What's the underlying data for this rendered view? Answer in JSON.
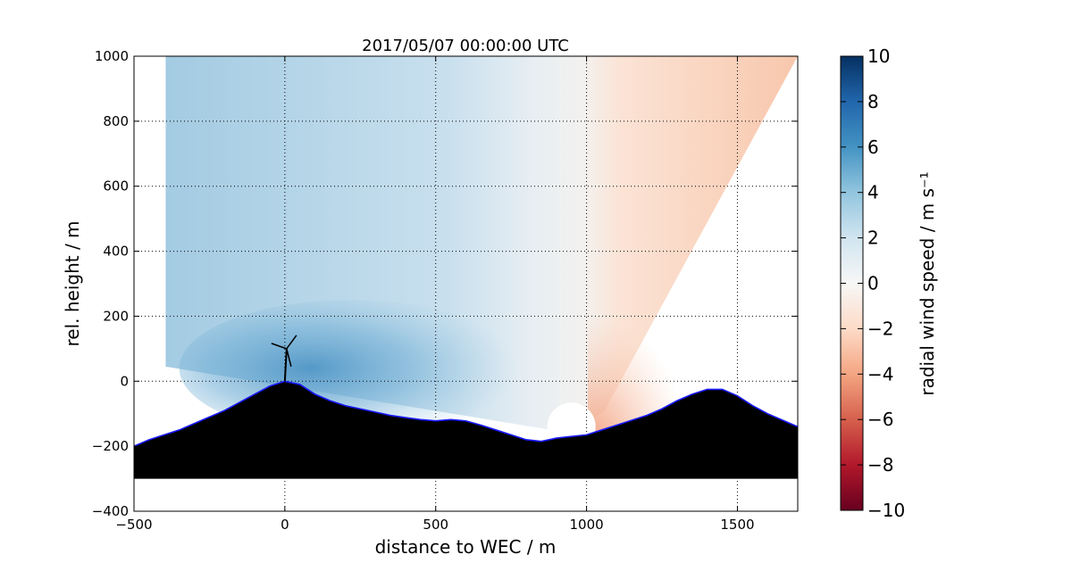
{
  "chart_data": {
    "type": "heatmap",
    "title": "2017/05/07 00:00:00 UTC",
    "xlabel": "distance to WEC / m",
    "ylabel": "rel. height / m",
    "xlim": [
      -500,
      1700
    ],
    "ylim": [
      -400,
      1000
    ],
    "xticks": [
      -500,
      0,
      500,
      1000,
      1500
    ],
    "yticks": [
      -400,
      -200,
      0,
      200,
      400,
      600,
      800,
      1000
    ],
    "xtick_labels": [
      "−500",
      "0",
      "500",
      "1000",
      "1500"
    ],
    "ytick_labels": [
      "−400",
      "−200",
      "0",
      "200",
      "400",
      "600",
      "800",
      "1000"
    ],
    "grid": true,
    "colorbar": {
      "label": "radial wind speed / m s⁻¹",
      "range": [
        -10,
        10
      ],
      "ticks": [
        10,
        8,
        6,
        4,
        2,
        0,
        -2,
        -4,
        -6,
        -8,
        -10
      ],
      "tick_labels": [
        "10",
        "8",
        "6",
        "4",
        "2",
        "0",
        "−2",
        "−4",
        "−6",
        "−8",
        "−10"
      ],
      "colormap": "RdBu",
      "colors": [
        "#67001f",
        "#b2182b",
        "#d6604d",
        "#f4a582",
        "#fddbc7",
        "#f7f7f7",
        "#d1e5f0",
        "#92c5de",
        "#4393c3",
        "#2166ac",
        "#053061"
      ]
    },
    "scan": {
      "lidar_position": [
        950,
        -140
      ],
      "sector_edges": [
        {
          "x_end": -395,
          "y_end": 1000
        },
        {
          "x_end": 1700,
          "y_end": 1000
        }
      ],
      "near_ground_edge": [
        [
          -395,
          45
        ],
        [
          950,
          -160
        ]
      ],
      "far_ground_edge": [
        [
          1700,
          1000
        ],
        [
          1060,
          -90
        ]
      ],
      "wind_field": [
        {
          "region": "upper sector, left of lidar",
          "velocity_range": [
            1,
            3
          ]
        },
        {
          "region": "low-level jet near WEC hub",
          "velocity_range": [
            5,
            7
          ]
        },
        {
          "region": "right of lidar",
          "velocity_range": [
            -3,
            -1
          ]
        },
        {
          "region": "near-surface right of lidar",
          "velocity_range": [
            -4,
            -3
          ]
        }
      ]
    },
    "wec": {
      "x": 0,
      "hub_height": 100
    },
    "terrain": {
      "color": "#000000",
      "outline_color": "#1a1aff",
      "base": -300,
      "profile_x": [
        -500,
        -450,
        -400,
        -350,
        -300,
        -250,
        -200,
        -150,
        -100,
        -50,
        0,
        50,
        100,
        150,
        200,
        250,
        300,
        350,
        400,
        450,
        500,
        550,
        600,
        650,
        700,
        750,
        800,
        850,
        900,
        950,
        1000,
        1050,
        1100,
        1150,
        1200,
        1250,
        1300,
        1350,
        1400,
        1450,
        1500,
        1550,
        1600,
        1650,
        1700
      ],
      "profile_y": [
        -200,
        -180,
        -165,
        -150,
        -130,
        -110,
        -90,
        -65,
        -40,
        -15,
        0,
        -10,
        -40,
        -60,
        -75,
        -85,
        -95,
        -105,
        -112,
        -118,
        -122,
        -118,
        -122,
        -135,
        -150,
        -165,
        -180,
        -185,
        -175,
        -170,
        -165,
        -150,
        -135,
        -120,
        -105,
        -85,
        -60,
        -40,
        -25,
        -25,
        -45,
        -75,
        -100,
        -120,
        -140
      ]
    }
  }
}
